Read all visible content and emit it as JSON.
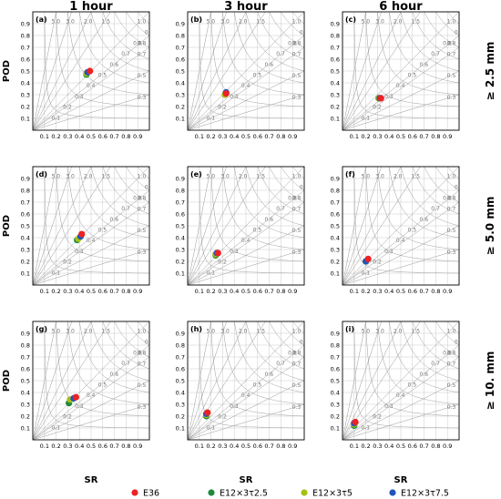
{
  "figure": {
    "column_titles": [
      "1 hour",
      "3 hour",
      "6 hour"
    ],
    "row_labels": [
      "≥ 2.5 mm",
      "≥ 5.0 mm",
      "≥ 10. mm"
    ],
    "xlabel": "SR",
    "ylabel": "POD",
    "tick_labels": [
      "0.1",
      "0.2",
      "0.3",
      "0.4",
      "0.5",
      "0.6",
      "0.7",
      "0.8",
      "0.9"
    ],
    "bias_contours": [
      0.3,
      0.5,
      0.7,
      0.8,
      1.0,
      1.5,
      2.0,
      3.0,
      5.0
    ],
    "bias_labels": [
      "0.3",
      "0.5",
      "0.7",
      "0.8",
      "1.0",
      "1.5",
      "2.0",
      "3.0",
      "5.0"
    ],
    "csi_contours": [
      0.1,
      0.2,
      0.3,
      0.4,
      0.5,
      0.6,
      0.7,
      0.8,
      0.9
    ],
    "csi_labels": [
      "0.1",
      "0.2",
      "0.3",
      "0.4",
      "0.5",
      "0.6",
      "0.7",
      "0.8",
      "0.9"
    ],
    "colors": {
      "E36": "#ee2222",
      "E12x3t2.5": "#1f8a3a",
      "E12x3t5": "#a8c014",
      "E12x3t7.5": "#2255bb",
      "grid": "#bbbbbb",
      "contour": "#999999"
    }
  },
  "legend": {
    "items": [
      {
        "key": "E36",
        "label": "E36"
      },
      {
        "key": "E12x3t2.5",
        "label": "E12×3τ2.5"
      },
      {
        "key": "E12x3t5",
        "label": "E12×3τ5"
      },
      {
        "key": "E12x3t7.5",
        "label": "E12×3τ7.5"
      }
    ]
  },
  "chart_data": [
    {
      "type": "scatter",
      "panel": "(a)",
      "accumulation": "1 hour",
      "threshold": "≥ 2.5 mm",
      "xlim": [
        0,
        1
      ],
      "ylim": [
        0,
        1
      ],
      "series": [
        {
          "name": "E36",
          "x": 0.49,
          "y": 0.5
        },
        {
          "name": "E12×3τ2.5",
          "x": 0.46,
          "y": 0.47
        },
        {
          "name": "E12×3τ5",
          "x": 0.46,
          "y": 0.48
        },
        {
          "name": "E12×3τ7.5",
          "x": 0.47,
          "y": 0.49
        }
      ]
    },
    {
      "type": "scatter",
      "panel": "(b)",
      "accumulation": "3 hour",
      "threshold": "≥ 2.5 mm",
      "xlim": [
        0,
        1
      ],
      "ylim": [
        0,
        1
      ],
      "series": [
        {
          "name": "E36",
          "x": 0.33,
          "y": 0.31
        },
        {
          "name": "E12×3τ2.5",
          "x": 0.32,
          "y": 0.3
        },
        {
          "name": "E12×3τ5",
          "x": 0.32,
          "y": 0.3
        },
        {
          "name": "E12×3τ7.5",
          "x": 0.33,
          "y": 0.32
        }
      ]
    },
    {
      "type": "scatter",
      "panel": "(c)",
      "accumulation": "6 hour",
      "threshold": "≥ 2.5 mm",
      "xlim": [
        0,
        1
      ],
      "ylim": [
        0,
        1
      ],
      "series": [
        {
          "name": "E36",
          "x": 0.33,
          "y": 0.27
        },
        {
          "name": "E12×3τ2.5",
          "x": 0.31,
          "y": 0.27
        },
        {
          "name": "E12×3τ5",
          "x": 0.31,
          "y": 0.27
        },
        {
          "name": "E12×3τ7.5",
          "x": 0.32,
          "y": 0.27
        }
      ]
    },
    {
      "type": "scatter",
      "panel": "(d)",
      "accumulation": "1 hour",
      "threshold": "≥ 5.0 mm",
      "xlim": [
        0,
        1
      ],
      "ylim": [
        0,
        1
      ],
      "series": [
        {
          "name": "E36",
          "x": 0.42,
          "y": 0.43
        },
        {
          "name": "E12×3τ2.5",
          "x": 0.38,
          "y": 0.38
        },
        {
          "name": "E12×3τ5",
          "x": 0.39,
          "y": 0.39
        },
        {
          "name": "E12×3τ7.5",
          "x": 0.41,
          "y": 0.41
        }
      ]
    },
    {
      "type": "scatter",
      "panel": "(e)",
      "accumulation": "3 hour",
      "threshold": "≥ 5.0 mm",
      "xlim": [
        0,
        1
      ],
      "ylim": [
        0,
        1
      ],
      "series": [
        {
          "name": "E36",
          "x": 0.26,
          "y": 0.27
        },
        {
          "name": "E12×3τ2.5",
          "x": 0.24,
          "y": 0.25
        },
        {
          "name": "E12×3τ5",
          "x": 0.24,
          "y": 0.26
        },
        {
          "name": "E12×3τ7.5",
          "x": 0.25,
          "y": 0.27
        }
      ]
    },
    {
      "type": "scatter",
      "panel": "(f)",
      "accumulation": "6 hour",
      "threshold": "≥ 5.0 mm",
      "xlim": [
        0,
        1
      ],
      "ylim": [
        0,
        1
      ],
      "series": [
        {
          "name": "E36",
          "x": 0.22,
          "y": 0.22
        },
        {
          "name": "E12×3τ2.5",
          "x": 0.2,
          "y": 0.2
        },
        {
          "name": "E12×3τ5",
          "x": 0.2,
          "y": 0.2
        },
        {
          "name": "E12×3τ7.5",
          "x": 0.2,
          "y": 0.2
        }
      ]
    },
    {
      "type": "scatter",
      "panel": "(g)",
      "accumulation": "1 hour",
      "threshold": "≥ 10. mm",
      "xlim": [
        0,
        1
      ],
      "ylim": [
        0,
        1
      ],
      "series": [
        {
          "name": "E36",
          "x": 0.37,
          "y": 0.36
        },
        {
          "name": "E12×3τ2.5",
          "x": 0.31,
          "y": 0.31
        },
        {
          "name": "E12×3τ5",
          "x": 0.32,
          "y": 0.34
        },
        {
          "name": "E12×3τ7.5",
          "x": 0.35,
          "y": 0.35
        }
      ]
    },
    {
      "type": "scatter",
      "panel": "(h)",
      "accumulation": "3 hour",
      "threshold": "≥ 10. mm",
      "xlim": [
        0,
        1
      ],
      "ylim": [
        0,
        1
      ],
      "series": [
        {
          "name": "E36",
          "x": 0.17,
          "y": 0.23
        },
        {
          "name": "E12×3τ2.5",
          "x": 0.16,
          "y": 0.2
        },
        {
          "name": "E12×3τ5",
          "x": 0.16,
          "y": 0.21
        },
        {
          "name": "E12×3τ7.5",
          "x": 0.16,
          "y": 0.22
        }
      ]
    },
    {
      "type": "scatter",
      "panel": "(i)",
      "accumulation": "6 hour",
      "threshold": "≥ 10. mm",
      "xlim": [
        0,
        1
      ],
      "ylim": [
        0,
        1
      ],
      "series": [
        {
          "name": "E36",
          "x": 0.11,
          "y": 0.15
        },
        {
          "name": "E12×3τ2.5",
          "x": 0.1,
          "y": 0.12
        },
        {
          "name": "E12×3τ5",
          "x": 0.1,
          "y": 0.13
        },
        {
          "name": "E12×3τ7.5",
          "x": 0.1,
          "y": 0.14
        }
      ]
    }
  ]
}
